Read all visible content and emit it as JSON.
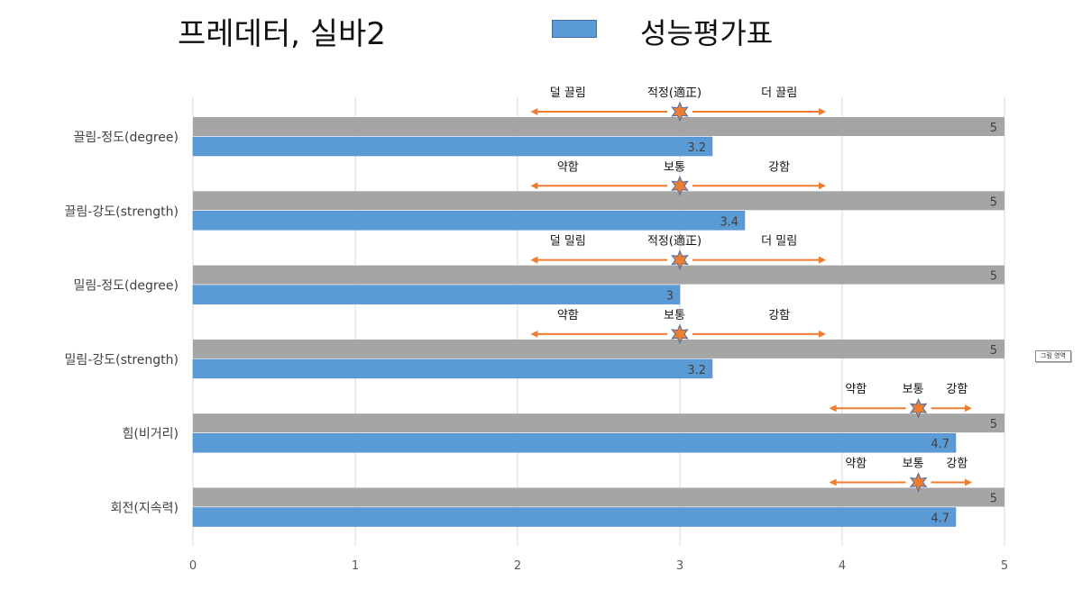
{
  "header": {
    "title": "프레데터, 실바2",
    "legend_label": "성능평가표"
  },
  "side_tag": "그림 영역",
  "colors": {
    "max_bar": "#a5a5a5",
    "score_bar": "#5b9bd5",
    "arrow": "#ed7d31",
    "star_fill": "#ed7d31",
    "star_stroke": "#4a6fa5",
    "grid": "#d9d9d9"
  },
  "chart_data": {
    "type": "bar",
    "orientation": "horizontal",
    "categories": [
      "끌림-정도(degree)",
      "끌림-강도(strength)",
      "밀림-정도(degree)",
      "밀림-강도(strength)",
      "힘(비거리)",
      "회전(지속력)"
    ],
    "series": [
      {
        "values": [
          5,
          5,
          5,
          5,
          5,
          5
        ],
        "color": "#a5a5a5"
      },
      {
        "values": [
          3.2,
          3.4,
          3,
          3.2,
          4.7,
          4.7
        ],
        "color": "#5b9bd5"
      }
    ],
    "xlim": [
      0,
      5
    ],
    "xticks": [
      "0",
      "1",
      "2",
      "3",
      "4",
      "5"
    ],
    "grid": true,
    "legend": "top",
    "annotations": [
      {
        "left": "덜 끌림",
        "center": "적정(適正)",
        "right": "더 끌림",
        "center_value": 3,
        "from": 2.08,
        "to": 3.9
      },
      {
        "left": "약함",
        "center": "보통",
        "right": "강함",
        "center_value": 3,
        "from": 2.08,
        "to": 3.9
      },
      {
        "left": "덜 밀림",
        "center": "적정(適正)",
        "right": "더 밀림",
        "center_value": 3,
        "from": 2.08,
        "to": 3.9
      },
      {
        "left": "약함",
        "center": "보통",
        "right": "강함",
        "center_value": 3,
        "from": 2.08,
        "to": 3.9
      },
      {
        "left": "약함",
        "center": "보통",
        "right": "강함",
        "center_value": 4.47,
        "from": 3.92,
        "to": 4.8
      },
      {
        "left": "약함",
        "center": "보통",
        "right": "강함",
        "center_value": 4.47,
        "from": 3.92,
        "to": 4.8
      }
    ]
  }
}
